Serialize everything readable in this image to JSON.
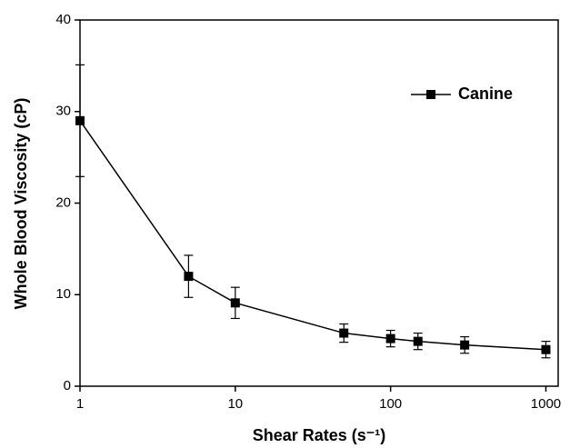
{
  "chart_data": {
    "type": "line",
    "x_label": "Shear Rates (s⁻¹)",
    "y_label": "Whole Blood Viscosity (cP)",
    "x": [
      1,
      5,
      10,
      50,
      100,
      150,
      300,
      1000
    ],
    "series": [
      {
        "name": "Canine",
        "color": "#000000",
        "values": [
          29,
          12,
          9.1,
          5.8,
          5.2,
          4.9,
          4.5,
          4.0
        ],
        "errors": [
          6.1,
          2.3,
          1.7,
          1.0,
          0.9,
          0.9,
          0.9,
          0.9
        ]
      }
    ],
    "x_log": true,
    "xlim": [
      1,
      1200
    ],
    "xticks": [
      1,
      10,
      100,
      1000
    ],
    "ylim": [
      0,
      40
    ],
    "yticks": [
      0,
      10,
      20,
      30,
      40
    ],
    "legend": "upper right"
  }
}
